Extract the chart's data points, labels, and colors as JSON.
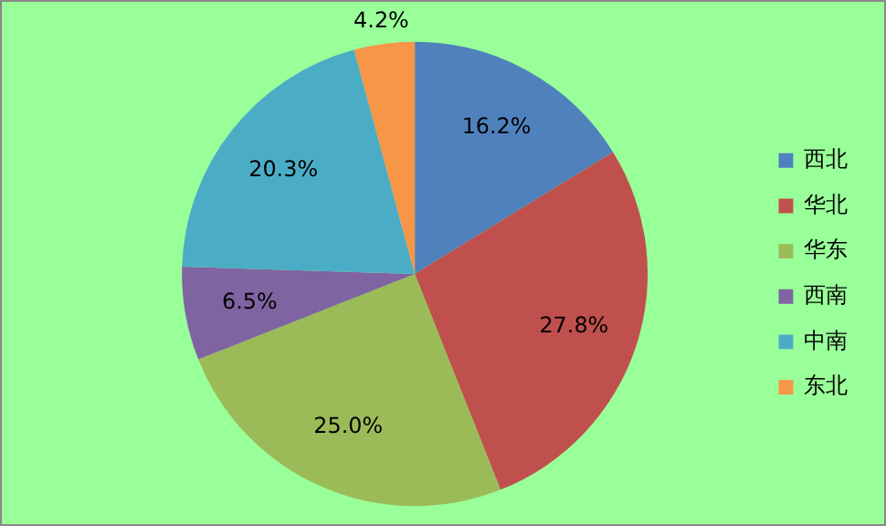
{
  "chart_data": {
    "type": "pie",
    "categories": [
      "西北",
      "华北",
      "华东",
      "西南",
      "中南",
      "东北"
    ],
    "values": [
      16.2,
      27.8,
      25.0,
      6.5,
      20.3,
      4.2
    ],
    "colors": [
      "#4f81bd",
      "#c0504d",
      "#9bbb59",
      "#8064a2",
      "#4bacc6",
      "#f79646"
    ],
    "value_labels": [
      "16.2%",
      "27.8%",
      "25.0%",
      "6.5%",
      "20.3%",
      "4.2%"
    ],
    "legend": "right"
  }
}
